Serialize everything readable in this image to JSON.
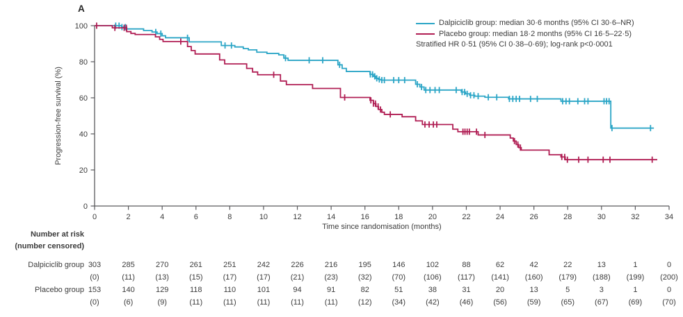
{
  "panel_label": "A",
  "chart_data": {
    "type": "line",
    "subtype": "kaplan-meier-step",
    "title": "",
    "xlabel": "Time since randomisation (months)",
    "ylabel": "Progression-free survival (%)",
    "xlim": [
      0,
      34
    ],
    "ylim": [
      0,
      100
    ],
    "xticks": [
      0,
      2,
      4,
      6,
      8,
      10,
      12,
      14,
      16,
      18,
      20,
      22,
      24,
      26,
      28,
      30,
      32,
      34
    ],
    "yticks": [
      0,
      20,
      40,
      60,
      80,
      100
    ],
    "grid": false,
    "legend_position": "top-right",
    "annotation": "Stratified HR 0·51 (95% CI 0·38–0·69); log-rank p<0·0001",
    "axis_color": "#57575b",
    "text_color": "#3a3a3a",
    "series": [
      {
        "name": "Dalpiciclib group",
        "legend_label": "Dalpiciclib group: median 30·6 months (95% CI 30·6–NR)",
        "color": "#2aa5c6",
        "median_months": 30.6,
        "steps": [
          [
            0,
            100
          ],
          [
            1.6,
            99.2
          ],
          [
            1.9,
            98.2
          ],
          [
            2.9,
            97.3
          ],
          [
            3.4,
            96.5
          ],
          [
            3.7,
            95.6
          ],
          [
            4.0,
            94.4
          ],
          [
            4.2,
            93.3
          ],
          [
            5.6,
            91.0
          ],
          [
            7.5,
            89.0
          ],
          [
            8.3,
            88.2
          ],
          [
            8.8,
            87.3
          ],
          [
            9.1,
            86.6
          ],
          [
            9.6,
            85.3
          ],
          [
            10.2,
            84.6
          ],
          [
            10.9,
            83.8
          ],
          [
            11.2,
            82.0
          ],
          [
            11.45,
            80.8
          ],
          [
            14.4,
            78.3
          ],
          [
            14.65,
            76.3
          ],
          [
            14.9,
            74.6
          ],
          [
            16.3,
            73.0
          ],
          [
            16.5,
            71.9
          ],
          [
            16.65,
            70.8
          ],
          [
            16.8,
            70.2
          ],
          [
            16.95,
            69.8
          ],
          [
            19.0,
            67.5
          ],
          [
            19.25,
            66.0
          ],
          [
            19.5,
            64.3
          ],
          [
            21.7,
            63.2
          ],
          [
            21.95,
            62.2
          ],
          [
            22.2,
            61.4
          ],
          [
            22.5,
            60.9
          ],
          [
            23.1,
            60.3
          ],
          [
            24.5,
            59.4
          ],
          [
            27.6,
            58.1
          ],
          [
            30.55,
            43.2
          ]
        ],
        "end": 33.1,
        "censors": [
          1.25,
          1.45,
          1.62,
          1.82,
          3.62,
          3.92,
          5.5,
          7.72,
          8.1,
          11.3,
          12.7,
          13.5,
          14.5,
          16.32,
          16.45,
          16.58,
          16.7,
          16.85,
          17.0,
          17.15,
          17.7,
          18.0,
          18.35,
          19.1,
          19.35,
          19.6,
          19.85,
          20.15,
          20.4,
          21.4,
          21.75,
          21.9,
          22.05,
          22.25,
          22.45,
          22.7,
          23.3,
          23.8,
          24.55,
          24.75,
          24.95,
          25.15,
          25.8,
          26.2,
          27.7,
          27.9,
          28.1,
          28.6,
          29.0,
          29.2,
          30.15,
          30.3,
          30.45,
          30.62,
          32.9
        ]
      },
      {
        "name": "Placebo group",
        "legend_label": "Placebo group: median 18·2 months (95% CI 16·5–22·5)",
        "color": "#b01d53",
        "median_months": 18.2,
        "steps": [
          [
            0,
            100
          ],
          [
            1.05,
            98.8
          ],
          [
            1.9,
            96.7
          ],
          [
            2.15,
            95.7
          ],
          [
            2.4,
            95.1
          ],
          [
            3.6,
            93.8
          ],
          [
            3.85,
            92.4
          ],
          [
            4.05,
            91.2
          ],
          [
            5.5,
            88.4
          ],
          [
            5.72,
            86.2
          ],
          [
            5.95,
            84.3
          ],
          [
            7.4,
            81.0
          ],
          [
            7.7,
            78.8
          ],
          [
            9.0,
            76.3
          ],
          [
            9.35,
            74.3
          ],
          [
            9.65,
            72.8
          ],
          [
            11.0,
            69.3
          ],
          [
            11.35,
            67.3
          ],
          [
            12.9,
            65.2
          ],
          [
            14.55,
            60.2
          ],
          [
            16.3,
            58.6
          ],
          [
            16.5,
            56.8
          ],
          [
            16.65,
            55.2
          ],
          [
            16.8,
            53.5
          ],
          [
            17.0,
            52.0
          ],
          [
            17.15,
            50.8
          ],
          [
            18.2,
            49.5
          ],
          [
            19.0,
            47.2
          ],
          [
            19.4,
            45.2
          ],
          [
            21.2,
            42.6
          ],
          [
            21.5,
            41.2
          ],
          [
            22.7,
            39.4
          ],
          [
            24.6,
            37.7
          ],
          [
            24.78,
            36.0
          ],
          [
            24.95,
            34.1
          ],
          [
            25.1,
            32.4
          ],
          [
            25.25,
            31.0
          ],
          [
            26.9,
            28.4
          ],
          [
            27.6,
            27.2
          ],
          [
            27.85,
            25.7
          ]
        ],
        "end": 33.3,
        "censors": [
          0.12,
          1.2,
          1.75,
          1.88,
          5.1,
          10.6,
          14.8,
          16.35,
          16.5,
          16.62,
          16.78,
          16.92,
          17.5,
          19.55,
          19.8,
          20.05,
          20.25,
          21.8,
          21.92,
          22.05,
          22.18,
          22.6,
          23.1,
          24.85,
          25.05,
          25.2,
          27.65,
          27.82,
          27.98,
          28.65,
          29.2,
          30.1,
          30.5,
          33.0
        ]
      }
    ]
  },
  "risk_table": {
    "title_line1": "Number at risk",
    "title_line2": "(number censored)",
    "months": [
      0,
      2,
      4,
      6,
      8,
      10,
      12,
      14,
      16,
      18,
      20,
      22,
      24,
      26,
      28,
      30,
      32,
      34
    ],
    "rows": [
      {
        "label": "Dalpiciclib group",
        "at_risk": [
          "303",
          "285",
          "270",
          "261",
          "251",
          "242",
          "226",
          "216",
          "195",
          "146",
          "102",
          "88",
          "62",
          "42",
          "22",
          "13",
          "1",
          "0"
        ],
        "censored": [
          "(0)",
          "(11)",
          "(13)",
          "(15)",
          "(17)",
          "(17)",
          "(21)",
          "(23)",
          "(32)",
          "(70)",
          "(106)",
          "(117)",
          "(141)",
          "(160)",
          "(179)",
          "(188)",
          "(199)",
          "(200)"
        ]
      },
      {
        "label": "Placebo group",
        "at_risk": [
          "153",
          "140",
          "129",
          "118",
          "110",
          "101",
          "94",
          "91",
          "82",
          "51",
          "38",
          "31",
          "20",
          "13",
          "5",
          "3",
          "1",
          "0"
        ],
        "censored": [
          "(0)",
          "(6)",
          "(9)",
          "(11)",
          "(11)",
          "(11)",
          "(11)",
          "(11)",
          "(12)",
          "(34)",
          "(42)",
          "(46)",
          "(56)",
          "(59)",
          "(65)",
          "(67)",
          "(69)",
          "(70)"
        ]
      }
    ]
  }
}
